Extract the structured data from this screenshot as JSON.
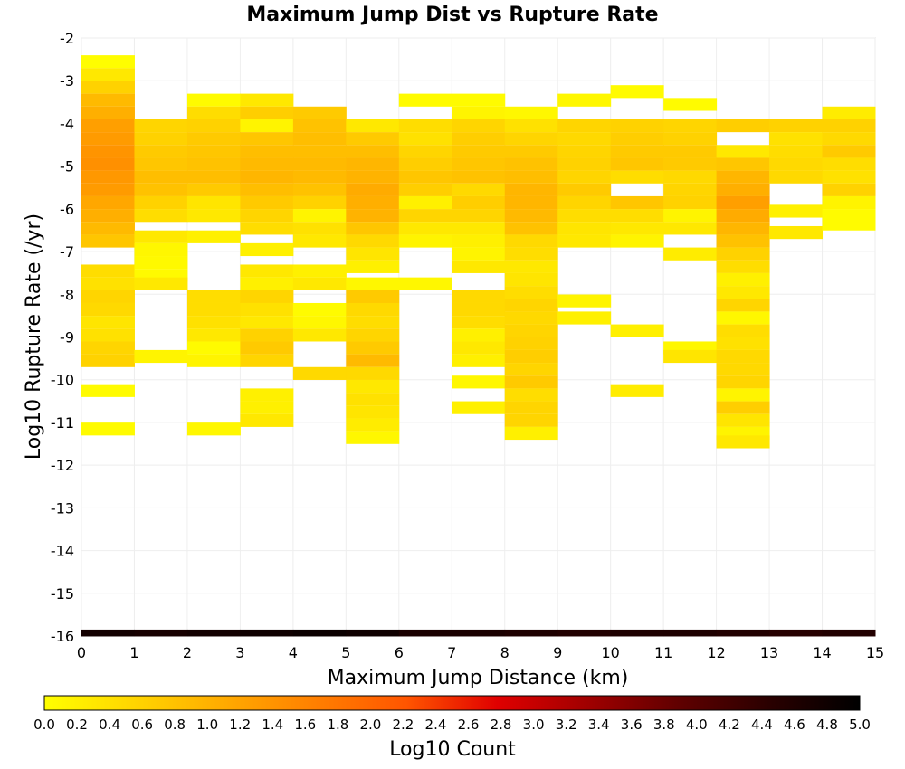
{
  "chart_data": {
    "type": "heatmap",
    "title": "Maximum Jump Dist vs Rupture Rate",
    "xlabel": "Maximum Jump Distance (km)",
    "ylabel": "Log10 Rupture Rate (/yr)",
    "xlim": [
      0,
      15
    ],
    "ylim": [
      -16,
      -2
    ],
    "x_ticks": [
      "0",
      "1",
      "2",
      "3",
      "4",
      "5",
      "6",
      "7",
      "8",
      "9",
      "10",
      "11",
      "12",
      "13",
      "14",
      "15"
    ],
    "y_ticks": [
      "-2",
      "-3",
      "-4",
      "-5",
      "-6",
      "-7",
      "-8",
      "-9",
      "-10",
      "-11",
      "-12",
      "-13",
      "-14",
      "-15",
      "-16"
    ],
    "x_bin_width": 1,
    "y_bin_width": 0.29,
    "colorbar": {
      "label": "Log10 Count",
      "range": [
        0,
        5
      ],
      "ticks": [
        "0.0",
        "0.2",
        "0.4",
        "0.6",
        "0.8",
        "1.0",
        "1.2",
        "1.4",
        "1.6",
        "1.8",
        "2.0",
        "2.2",
        "2.4",
        "2.6",
        "2.8",
        "3.0",
        "3.2",
        "3.4",
        "3.6",
        "3.8",
        "4.0",
        "4.2",
        "4.4",
        "4.6",
        "4.8",
        "5.0"
      ],
      "colors": [
        "#ffff00",
        "#ffd500",
        "#ffaa00",
        "#ff7f00",
        "#ff5500",
        "#e00000",
        "#a00000",
        "#600000",
        "#2a0000",
        "#000000"
      ]
    },
    "columns": [
      {
        "x": 0,
        "cells": [
          [
            -2.55,
            0.02
          ],
          [
            -2.85,
            0.3
          ],
          [
            -3.15,
            0.6
          ],
          [
            -3.45,
            0.9
          ],
          [
            -3.75,
            1.05
          ],
          [
            -4.05,
            1.25
          ],
          [
            -4.35,
            1.3
          ],
          [
            -4.65,
            1.4
          ],
          [
            -4.95,
            1.45
          ],
          [
            -5.25,
            1.35
          ],
          [
            -5.55,
            1.3
          ],
          [
            -5.85,
            1.15
          ],
          [
            -6.15,
            1.05
          ],
          [
            -6.45,
            0.9
          ],
          [
            -6.75,
            0.75
          ],
          [
            -7.45,
            0.45
          ],
          [
            -7.75,
            0.4
          ],
          [
            -8.05,
            0.55
          ],
          [
            -8.35,
            0.5
          ],
          [
            -8.65,
            0.35
          ],
          [
            -8.95,
            0.4
          ],
          [
            -9.25,
            0.55
          ],
          [
            -9.55,
            0.6
          ],
          [
            -10.25,
            0.05
          ],
          [
            -11.15,
            0.05
          ]
        ]
      },
      {
        "x": 1,
        "cells": [
          [
            -4.05,
            0.55
          ],
          [
            -4.35,
            0.6
          ],
          [
            -4.65,
            0.7
          ],
          [
            -4.95,
            0.75
          ],
          [
            -5.25,
            0.85
          ],
          [
            -5.55,
            0.8
          ],
          [
            -5.85,
            0.6
          ],
          [
            -6.15,
            0.45
          ],
          [
            -6.65,
            0.3
          ],
          [
            -6.95,
            0.1
          ],
          [
            -7.25,
            0.08
          ],
          [
            -7.55,
            0.06
          ],
          [
            -7.75,
            0.3
          ],
          [
            -9.45,
            0.15
          ]
        ]
      },
      {
        "x": 2,
        "cells": [
          [
            -3.45,
            0.05
          ],
          [
            -3.75,
            0.45
          ],
          [
            -4.05,
            0.6
          ],
          [
            -4.35,
            0.7
          ],
          [
            -4.65,
            0.75
          ],
          [
            -4.95,
            0.8
          ],
          [
            -5.25,
            0.85
          ],
          [
            -5.55,
            0.7
          ],
          [
            -5.85,
            0.35
          ],
          [
            -6.15,
            0.3
          ],
          [
            -6.65,
            0.2
          ],
          [
            -8.05,
            0.45
          ],
          [
            -8.35,
            0.45
          ],
          [
            -8.65,
            0.4
          ],
          [
            -8.95,
            0.3
          ],
          [
            -9.25,
            0.05
          ],
          [
            -9.55,
            0.15
          ],
          [
            -11.15,
            0.1
          ]
        ]
      },
      {
        "x": 3,
        "cells": [
          [
            -3.45,
            0.3
          ],
          [
            -3.75,
            0.65
          ],
          [
            -4.05,
            0.15
          ],
          [
            -4.35,
            0.75
          ],
          [
            -4.65,
            0.85
          ],
          [
            -4.95,
            0.9
          ],
          [
            -5.25,
            0.95
          ],
          [
            -5.55,
            0.85
          ],
          [
            -5.85,
            0.7
          ],
          [
            -6.15,
            0.55
          ],
          [
            -6.45,
            0.45
          ],
          [
            -6.95,
            0.2
          ],
          [
            -7.45,
            0.3
          ],
          [
            -7.75,
            0.2
          ],
          [
            -8.05,
            0.55
          ],
          [
            -8.35,
            0.4
          ],
          [
            -8.65,
            0.3
          ],
          [
            -8.95,
            0.6
          ],
          [
            -9.25,
            0.7
          ],
          [
            -9.55,
            0.55
          ],
          [
            -10.35,
            0.2
          ],
          [
            -10.65,
            0.2
          ],
          [
            -10.95,
            0.3
          ]
        ]
      },
      {
        "x": 4,
        "cells": [
          [
            -3.75,
            0.7
          ],
          [
            -4.05,
            0.8
          ],
          [
            -4.35,
            0.85
          ],
          [
            -4.65,
            0.85
          ],
          [
            -4.95,
            0.9
          ],
          [
            -5.25,
            0.9
          ],
          [
            -5.55,
            0.8
          ],
          [
            -5.85,
            0.6
          ],
          [
            -6.15,
            0.15
          ],
          [
            -6.45,
            0.4
          ],
          [
            -6.75,
            0.3
          ],
          [
            -7.45,
            0.2
          ],
          [
            -7.75,
            0.3
          ],
          [
            -8.35,
            0.05
          ],
          [
            -8.65,
            0.1
          ],
          [
            -8.95,
            0.3
          ],
          [
            -9.85,
            0.5
          ]
        ]
      },
      {
        "x": 5,
        "cells": [
          [
            -4.05,
            0.3
          ],
          [
            -4.35,
            0.7
          ],
          [
            -4.65,
            0.85
          ],
          [
            -4.95,
            0.95
          ],
          [
            -5.25,
            1.0
          ],
          [
            -5.55,
            1.1
          ],
          [
            -5.85,
            1.05
          ],
          [
            -6.15,
            1.0
          ],
          [
            -6.45,
            0.75
          ],
          [
            -6.75,
            0.5
          ],
          [
            -7.05,
            0.35
          ],
          [
            -7.35,
            0.2
          ],
          [
            -7.75,
            0.1
          ],
          [
            -8.05,
            0.7
          ],
          [
            -8.35,
            0.5
          ],
          [
            -8.65,
            0.45
          ],
          [
            -8.95,
            0.55
          ],
          [
            -9.25,
            0.7
          ],
          [
            -9.55,
            0.9
          ],
          [
            -9.85,
            0.5
          ],
          [
            -10.15,
            0.3
          ],
          [
            -10.45,
            0.4
          ],
          [
            -10.75,
            0.35
          ],
          [
            -11.05,
            0.25
          ],
          [
            -11.35,
            0.1
          ]
        ]
      },
      {
        "x": 6,
        "cells": [
          [
            -3.45,
            0.05
          ],
          [
            -4.05,
            0.45
          ],
          [
            -4.35,
            0.4
          ],
          [
            -4.65,
            0.55
          ],
          [
            -4.95,
            0.65
          ],
          [
            -5.25,
            0.75
          ],
          [
            -5.55,
            0.65
          ],
          [
            -5.85,
            0.2
          ],
          [
            -6.15,
            0.55
          ],
          [
            -6.45,
            0.3
          ],
          [
            -6.75,
            0.15
          ],
          [
            -7.75,
            0.1
          ]
        ]
      },
      {
        "x": 7,
        "cells": [
          [
            -3.45,
            0.05
          ],
          [
            -3.75,
            0.15
          ],
          [
            -4.05,
            0.55
          ],
          [
            -4.35,
            0.65
          ],
          [
            -4.65,
            0.7
          ],
          [
            -4.95,
            0.75
          ],
          [
            -5.25,
            0.8
          ],
          [
            -5.55,
            0.5
          ],
          [
            -5.85,
            0.65
          ],
          [
            -6.15,
            0.55
          ],
          [
            -6.45,
            0.3
          ],
          [
            -6.75,
            0.2
          ],
          [
            -7.05,
            0.15
          ],
          [
            -7.35,
            0.3
          ],
          [
            -8.05,
            0.5
          ],
          [
            -8.35,
            0.5
          ],
          [
            -8.65,
            0.45
          ],
          [
            -8.95,
            0.2
          ],
          [
            -9.25,
            0.3
          ],
          [
            -9.55,
            0.2
          ],
          [
            -10.05,
            0.1
          ],
          [
            -10.65,
            0.2
          ]
        ]
      },
      {
        "x": 8,
        "cells": [
          [
            -3.75,
            0.1
          ],
          [
            -4.05,
            0.4
          ],
          [
            -4.35,
            0.55
          ],
          [
            -4.65,
            0.7
          ],
          [
            -4.95,
            0.8
          ],
          [
            -5.25,
            0.85
          ],
          [
            -5.55,
            0.95
          ],
          [
            -5.85,
            0.95
          ],
          [
            -6.15,
            0.9
          ],
          [
            -6.45,
            0.8
          ],
          [
            -6.75,
            0.5
          ],
          [
            -7.05,
            0.45
          ],
          [
            -7.35,
            0.3
          ],
          [
            -7.65,
            0.35
          ],
          [
            -7.95,
            0.45
          ],
          [
            -8.25,
            0.55
          ],
          [
            -8.55,
            0.5
          ],
          [
            -8.85,
            0.55
          ],
          [
            -9.15,
            0.6
          ],
          [
            -9.45,
            0.65
          ],
          [
            -9.75,
            0.55
          ],
          [
            -10.05,
            0.7
          ],
          [
            -10.35,
            0.45
          ],
          [
            -10.65,
            0.55
          ],
          [
            -10.95,
            0.55
          ],
          [
            -11.25,
            0.2
          ]
        ]
      },
      {
        "x": 9,
        "cells": [
          [
            -3.45,
            0.1
          ],
          [
            -4.05,
            0.55
          ],
          [
            -4.35,
            0.5
          ],
          [
            -4.65,
            0.55
          ],
          [
            -4.95,
            0.6
          ],
          [
            -5.25,
            0.55
          ],
          [
            -5.55,
            0.7
          ],
          [
            -5.85,
            0.55
          ],
          [
            -6.15,
            0.45
          ],
          [
            -6.45,
            0.35
          ],
          [
            -6.75,
            0.3
          ],
          [
            -8.15,
            0.15
          ],
          [
            -8.55,
            0.2
          ]
        ]
      },
      {
        "x": 10,
        "cells": [
          [
            -3.25,
            0.05
          ],
          [
            -4.05,
            0.6
          ],
          [
            -4.35,
            0.65
          ],
          [
            -4.65,
            0.7
          ],
          [
            -4.95,
            0.75
          ],
          [
            -5.25,
            0.45
          ],
          [
            -5.85,
            0.75
          ],
          [
            -6.15,
            0.45
          ],
          [
            -6.45,
            0.3
          ],
          [
            -6.75,
            0.15
          ],
          [
            -8.85,
            0.2
          ],
          [
            -10.25,
            0.25
          ]
        ]
      },
      {
        "x": 11,
        "cells": [
          [
            -3.55,
            0.05
          ],
          [
            -4.05,
            0.55
          ],
          [
            -4.35,
            0.6
          ],
          [
            -4.65,
            0.7
          ],
          [
            -4.95,
            0.7
          ],
          [
            -5.25,
            0.5
          ],
          [
            -5.55,
            0.55
          ],
          [
            -5.85,
            0.6
          ],
          [
            -6.15,
            0.15
          ],
          [
            -6.45,
            0.3
          ],
          [
            -7.05,
            0.25
          ],
          [
            -9.25,
            0.1
          ],
          [
            -9.45,
            0.35
          ]
        ]
      },
      {
        "x": 12,
        "cells": [
          [
            -4.05,
            0.65
          ],
          [
            -4.65,
            0.3
          ],
          [
            -4.95,
            0.75
          ],
          [
            -5.25,
            0.95
          ],
          [
            -5.55,
            1.05
          ],
          [
            -5.85,
            1.25
          ],
          [
            -6.15,
            1.1
          ],
          [
            -6.45,
            0.95
          ],
          [
            -6.75,
            0.8
          ],
          [
            -7.05,
            0.6
          ],
          [
            -7.35,
            0.45
          ],
          [
            -7.65,
            0.2
          ],
          [
            -7.95,
            0.3
          ],
          [
            -8.25,
            0.55
          ],
          [
            -8.55,
            0.1
          ],
          [
            -8.85,
            0.45
          ],
          [
            -9.15,
            0.4
          ],
          [
            -9.45,
            0.5
          ],
          [
            -9.75,
            0.5
          ],
          [
            -10.05,
            0.55
          ],
          [
            -10.35,
            0.15
          ],
          [
            -10.65,
            0.65
          ],
          [
            -10.95,
            0.35
          ],
          [
            -11.25,
            0.15
          ],
          [
            -11.45,
            0.3
          ]
        ]
      },
      {
        "x": 13,
        "cells": [
          [
            -4.05,
            0.6
          ],
          [
            -4.35,
            0.4
          ],
          [
            -4.65,
            0.45
          ],
          [
            -4.95,
            0.5
          ],
          [
            -5.25,
            0.5
          ],
          [
            -6.05,
            0.2
          ],
          [
            -6.55,
            0.3
          ]
        ]
      },
      {
        "x": 14,
        "cells": [
          [
            -3.75,
            0.25
          ],
          [
            -4.05,
            0.6
          ],
          [
            -4.35,
            0.5
          ],
          [
            -4.65,
            0.7
          ],
          [
            -4.95,
            0.45
          ],
          [
            -5.25,
            0.4
          ],
          [
            -5.55,
            0.6
          ],
          [
            -5.85,
            0.15
          ],
          [
            -6.15,
            0.05
          ],
          [
            -6.35,
            0.05
          ]
        ]
      }
    ],
    "bottom_row": {
      "y": -16,
      "values": [
        4.75,
        4.7,
        4.75,
        4.8,
        4.85,
        4.8,
        4.65,
        4.65,
        4.6,
        4.55,
        4.6,
        4.6,
        4.55,
        4.5,
        4.55
      ]
    }
  }
}
